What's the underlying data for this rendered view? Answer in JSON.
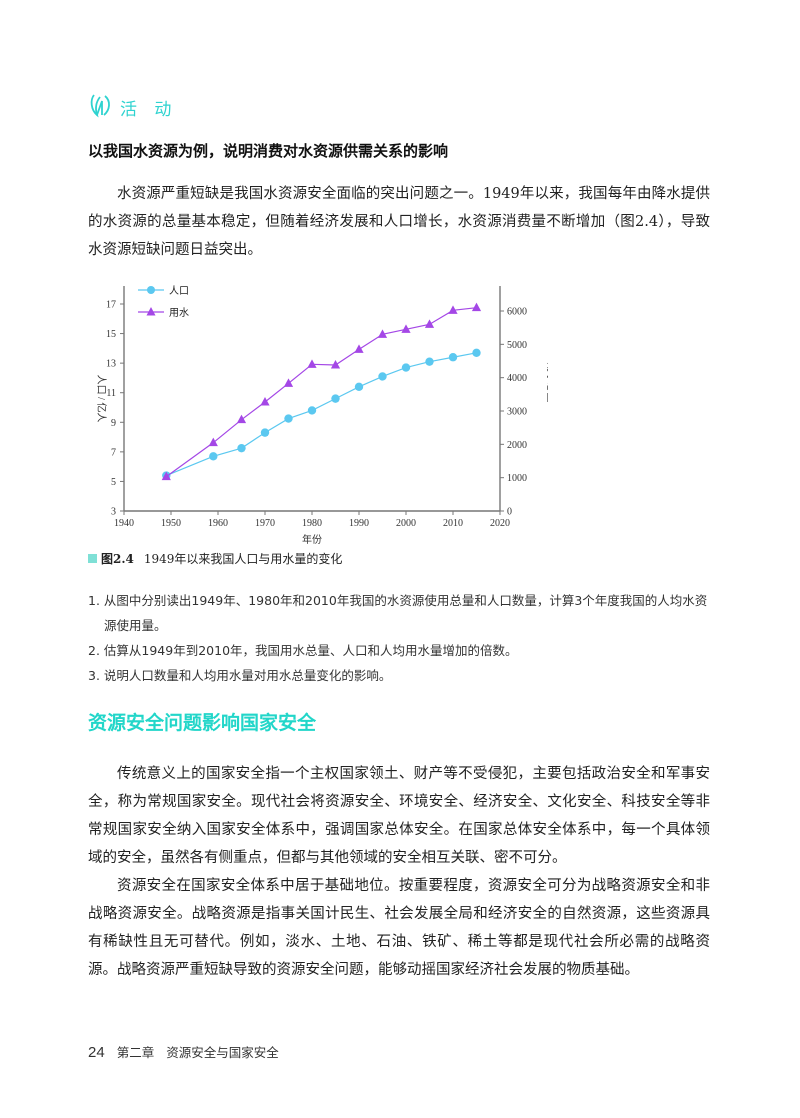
{
  "activity": {
    "label": "活 动",
    "icon": "activity-leaf-icon",
    "title": "以我国水资源为例，说明消费对水资源供需关系的影响",
    "intro": "水资源严重短缺是我国水资源安全面临的突出问题之一。1949年以来，我国每年由降水提供的水资源的总量基本稳定，但随着经济发展和人口增长，水资源消费量不断增加（图2.4），导致水资源短缺问题日益突出。"
  },
  "figure": {
    "number": "图2.4",
    "caption": "1949年以来我国人口与用水量的变化"
  },
  "chart_data": {
    "type": "line",
    "title": "1949年以来我国人口与用水量的变化",
    "xlabel": "年份",
    "ylabel": "人口 / 亿人",
    "y2label": "用水总量 / 10⁸m³",
    "xlim": [
      1940,
      2020
    ],
    "ylim": [
      3,
      17
    ],
    "y2lim": [
      0,
      7000
    ],
    "x_ticks": [
      1940,
      1950,
      1960,
      1970,
      1980,
      1990,
      2000,
      2010,
      2020
    ],
    "y_ticks": [
      3,
      5,
      7,
      9,
      11,
      13,
      15,
      17
    ],
    "y2_ticks": [
      0,
      1000,
      2000,
      3000,
      4000,
      5000,
      6000
    ],
    "grid": false,
    "legend_position": "top-left",
    "series": [
      {
        "name": "人口",
        "axis": "left",
        "marker": "circle",
        "color": "#5bc8f0",
        "x": [
          1949,
          1959,
          1965,
          1970,
          1975,
          1980,
          1985,
          1990,
          1995,
          2000,
          2005,
          2010,
          2015
        ],
        "values": [
          5.4,
          6.7,
          7.25,
          8.3,
          9.25,
          9.8,
          10.6,
          11.4,
          12.1,
          12.7,
          13.1,
          13.4,
          13.7
        ]
      },
      {
        "name": "用水",
        "axis": "right",
        "marker": "triangle",
        "color": "#a447e6",
        "x": [
          1949,
          1959,
          1965,
          1970,
          1975,
          1980,
          1985,
          1990,
          1995,
          2000,
          2005,
          2010,
          2015
        ],
        "values": [
          1030,
          2050,
          2740,
          3270,
          3830,
          4400,
          4380,
          4850,
          5300,
          5450,
          5600,
          6020,
          6100
        ]
      }
    ]
  },
  "questions": [
    "1. 从图中分别读出1949年、1980年和2010年我国的水资源使用总量和人口数量，计算3个年度我国的人均水资源使用量。",
    "2. 估算从1949年到2010年，我国用水总量、人口和人均用水量增加的倍数。",
    "3. 说明人口数量和人均用水量对用水总量变化的影响。"
  ],
  "section": {
    "title": "资源安全问题影响国家安全",
    "paragraphs": [
      "传统意义上的国家安全指一个主权国家领土、财产等不受侵犯，主要包括政治安全和军事安全，称为常规国家安全。现代社会将资源安全、环境安全、经济安全、文化安全、科技安全等非常规国家安全纳入国家安全体系中，强调国家总体安全。在国家总体安全体系中，每一个具体领域的安全，虽然各有侧重点，但都与其他领域的安全相互关联、密不可分。",
      "资源安全在国家安全体系中居于基础地位。按重要程度，资源安全可分为战略资源安全和非战略资源安全。战略资源是指事关国计民生、社会发展全局和经济安全的自然资源，这些资源具有稀缺性且无可替代。例如，淡水、土地、石油、铁矿、稀土等都是现代社会所必需的战略资源。战略资源严重短缺导致的资源安全问题，能够动摇国家经济社会发展的物质基础。"
    ]
  },
  "footer": {
    "page_number": "24",
    "chapter": "第二章",
    "chapter_title": "资源安全与国家安全"
  },
  "colors": {
    "accent": "#2fd3d0",
    "population_line": "#5bc8f0",
    "water_line": "#a447e6"
  }
}
